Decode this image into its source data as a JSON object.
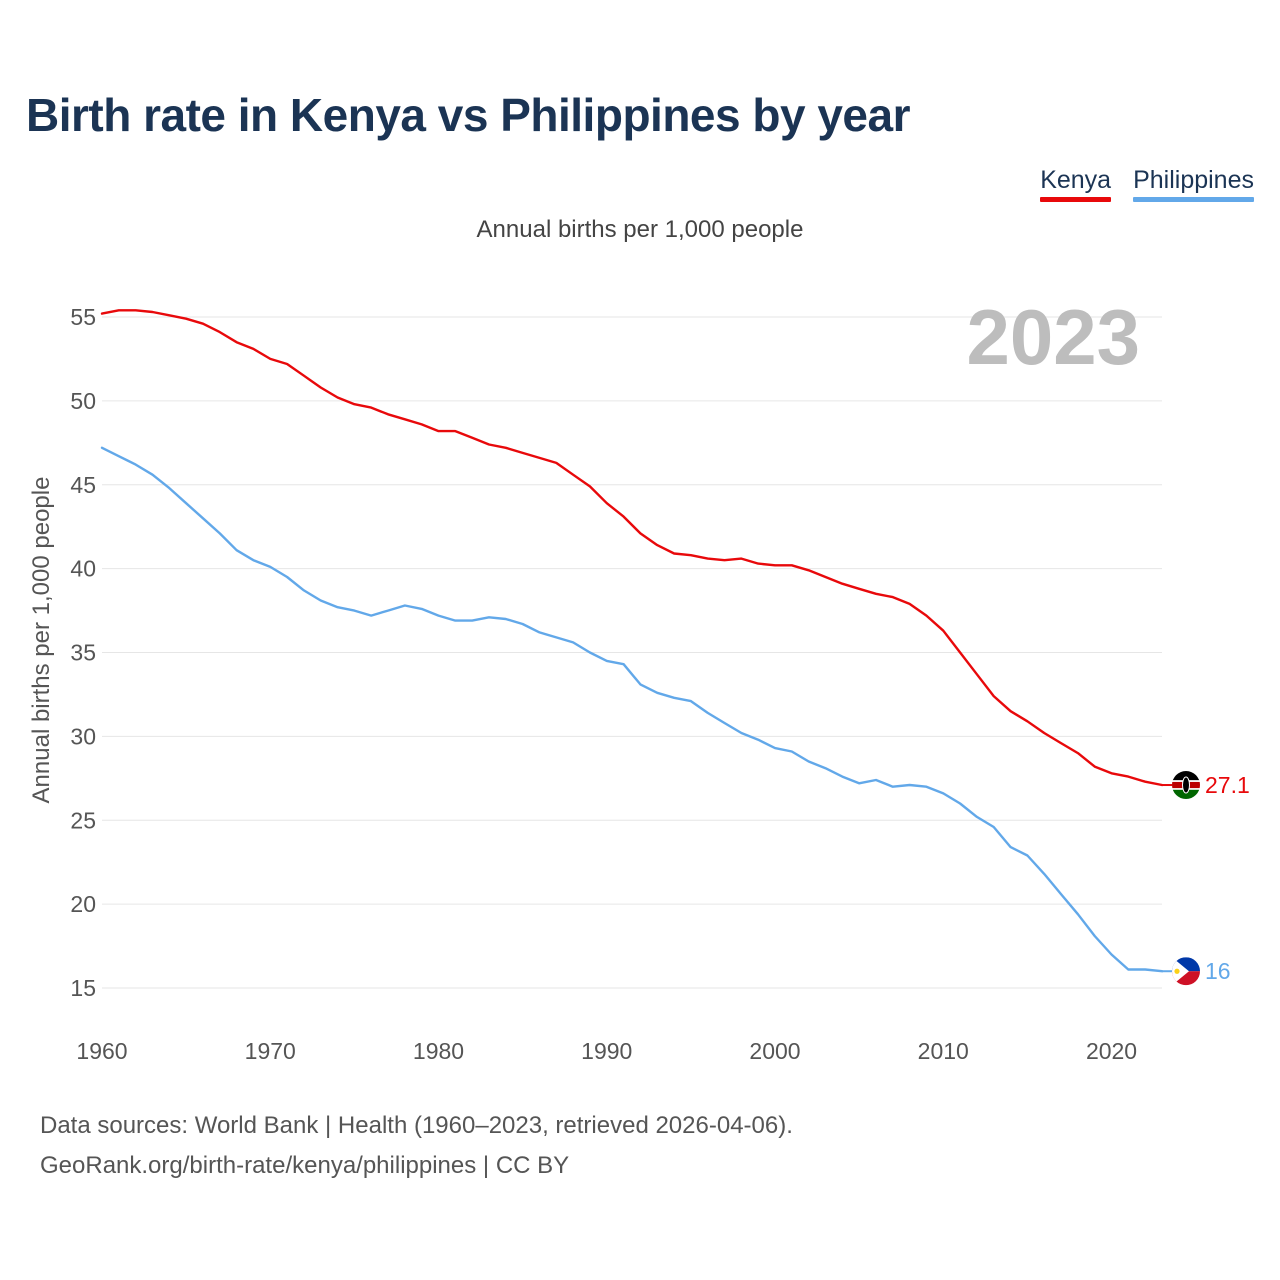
{
  "title": "Birth rate in Kenya vs Philippines by year",
  "subtitle": "Annual births per 1,000 people",
  "year_watermark": "2023",
  "legend": [
    {
      "name": "Kenya",
      "color": "#e8090b"
    },
    {
      "name": "Philippines",
      "color": "#62a8e9"
    }
  ],
  "source": {
    "line1": "Data sources: World Bank | Health (1960–2023, retrieved 2026-04-06).",
    "line2": "GeoRank.org/birth-rate/kenya/philippines | CC BY"
  },
  "chart_data": {
    "type": "line",
    "title": "Birth rate in Kenya vs Philippines by year",
    "subtitle": "Annual births per 1,000 people",
    "xlabel": "",
    "ylabel": "Annual births per 1,000 people",
    "xlim": [
      1960,
      2023
    ],
    "ylim": [
      13.5,
      56.5
    ],
    "yticks": [
      15,
      20,
      25,
      30,
      35,
      40,
      45,
      50,
      55
    ],
    "xticks": [
      1960,
      1970,
      1980,
      1990,
      2000,
      2010,
      2020
    ],
    "grid": true,
    "legend_position": "top-right",
    "x": [
      1960,
      1961,
      1962,
      1963,
      1964,
      1965,
      1966,
      1967,
      1968,
      1969,
      1970,
      1971,
      1972,
      1973,
      1974,
      1975,
      1976,
      1977,
      1978,
      1979,
      1980,
      1981,
      1982,
      1983,
      1984,
      1985,
      1986,
      1987,
      1988,
      1989,
      1990,
      1991,
      1992,
      1993,
      1994,
      1995,
      1996,
      1997,
      1998,
      1999,
      2000,
      2001,
      2002,
      2003,
      2004,
      2005,
      2006,
      2007,
      2008,
      2009,
      2010,
      2011,
      2012,
      2013,
      2014,
      2015,
      2016,
      2017,
      2018,
      2019,
      2020,
      2021,
      2022,
      2023
    ],
    "series": [
      {
        "name": "Kenya",
        "color": "#e8090b",
        "end_label": "27.1",
        "flag": "kenya-flag-icon",
        "values": [
          55.2,
          55.4,
          55.4,
          55.3,
          55.1,
          54.9,
          54.6,
          54.1,
          53.5,
          53.1,
          52.5,
          52.2,
          51.5,
          50.8,
          50.2,
          49.8,
          49.6,
          49.2,
          48.9,
          48.6,
          48.2,
          48.2,
          47.8,
          47.4,
          47.2,
          46.9,
          46.6,
          46.3,
          45.6,
          44.9,
          43.9,
          43.1,
          42.1,
          41.4,
          40.9,
          40.8,
          40.6,
          40.5,
          40.6,
          40.3,
          40.2,
          40.2,
          39.9,
          39.5,
          39.1,
          38.8,
          38.5,
          38.3,
          37.9,
          37.2,
          36.3,
          35.0,
          33.7,
          32.4,
          31.5,
          30.9,
          30.2,
          29.6,
          29.0,
          28.2,
          27.8,
          27.6,
          27.3,
          27.1
        ]
      },
      {
        "name": "Philippines",
        "color": "#62a8e9",
        "end_label": "16",
        "flag": "philippines-flag-icon",
        "values": [
          47.2,
          46.7,
          46.2,
          45.6,
          44.8,
          43.9,
          43.0,
          42.1,
          41.1,
          40.5,
          40.1,
          39.5,
          38.7,
          38.1,
          37.7,
          37.5,
          37.2,
          37.5,
          37.8,
          37.6,
          37.2,
          36.9,
          36.9,
          37.1,
          37.0,
          36.7,
          36.2,
          35.9,
          35.6,
          35.0,
          34.5,
          34.3,
          33.1,
          32.6,
          32.3,
          32.1,
          31.4,
          30.8,
          30.2,
          29.8,
          29.3,
          29.1,
          28.5,
          28.1,
          27.6,
          27.2,
          27.4,
          27.0,
          27.1,
          27.0,
          26.6,
          26.0,
          25.2,
          24.6,
          23.4,
          22.9,
          21.8,
          20.6,
          19.4,
          18.1,
          17.0,
          16.1,
          16.1,
          16.0
        ]
      }
    ]
  }
}
